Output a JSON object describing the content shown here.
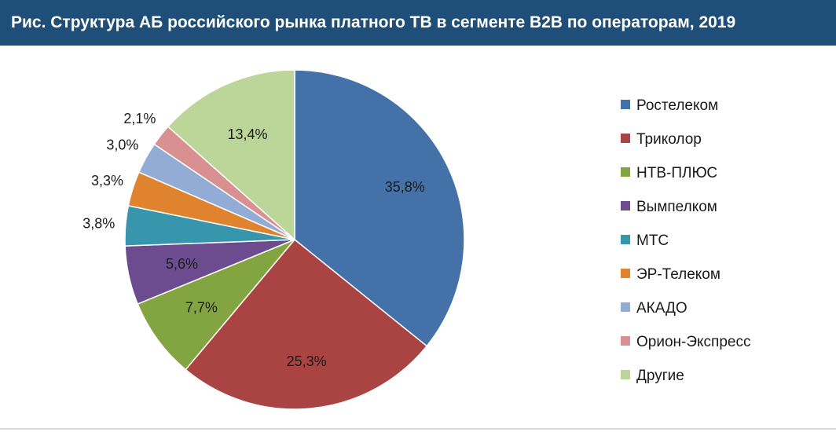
{
  "title": "Рис. Структура АБ российского рынка платного ТВ в сегменте B2B по операторам, 2019",
  "colors": {
    "title_bg": "#1f4e79",
    "title_text": "#ffffff"
  },
  "chart_data": {
    "type": "pie",
    "title": "",
    "legend_position": "right",
    "start_angle": "12 o'clock, clockwise",
    "categories": [
      "Ростелеком",
      "Триколор",
      "НТВ-ПЛЮС",
      "Вымпелком",
      "МТС",
      "ЭР-Телеком",
      "АКАДО",
      "Орион-Экспресс",
      "Другие"
    ],
    "values": [
      35.8,
      25.3,
      7.7,
      5.6,
      3.8,
      3.3,
      3.0,
      2.1,
      13.4
    ],
    "labels": [
      "35,8%",
      "25,3%",
      "7,7%",
      "5,6%",
      "3,8%",
      "3,3%",
      "3,0%",
      "2,1%",
      "13,4%"
    ],
    "colors": [
      "#4472a8",
      "#a94442",
      "#83a541",
      "#6c4c8f",
      "#3795ac",
      "#e0832e",
      "#93acd6",
      "#d99090",
      "#bcd598"
    ]
  }
}
